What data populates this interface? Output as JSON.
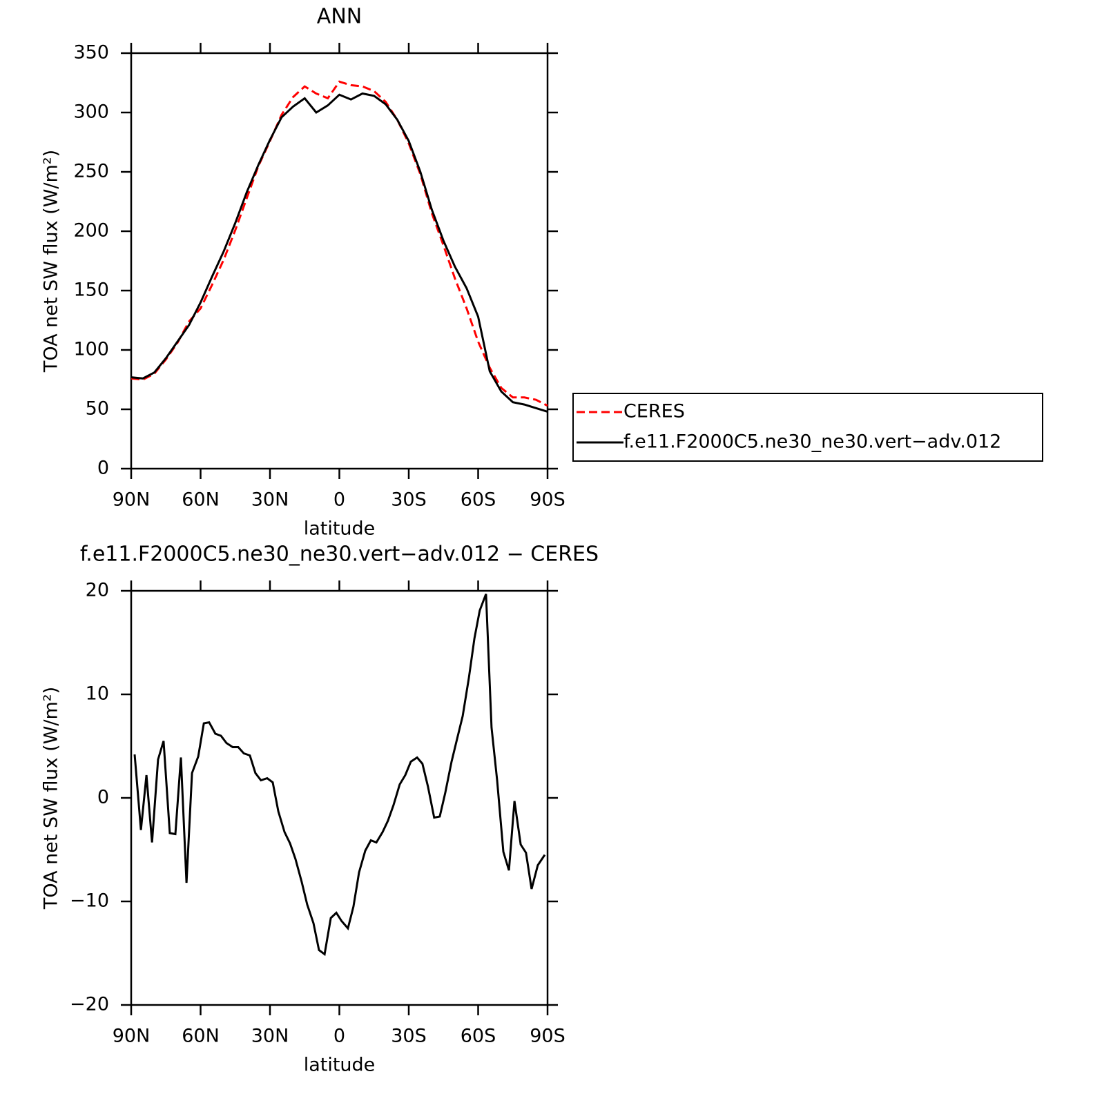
{
  "chart_data": [
    {
      "type": "line",
      "title": "ANN",
      "x_label": "latitude",
      "y_label": "TOA net SW flux (W/m²)",
      "x": [
        90,
        85,
        80,
        75,
        70,
        65,
        60,
        55,
        50,
        45,
        40,
        35,
        30,
        25,
        20,
        15,
        10,
        5,
        0,
        -5,
        -10,
        -15,
        -20,
        -25,
        -30,
        -35,
        -40,
        -45,
        -50,
        -55,
        -60,
        -65,
        -70,
        -75,
        -80,
        -85,
        -90
      ],
      "series": [
        {
          "name": "CERES",
          "color": "#ff0000",
          "dash": true,
          "values": [
            76,
            75,
            80,
            92,
            106,
            124,
            135,
            155,
            176,
            201,
            228,
            255,
            276,
            298,
            313,
            322,
            316,
            312,
            326,
            323,
            322,
            318,
            309,
            294,
            274,
            248,
            215,
            188,
            160,
            135,
            107,
            85,
            68,
            60,
            60,
            58,
            53
          ]
        },
        {
          "name": "f.e11.F2000C5.ne30_ne30.vert−adv.012",
          "color": "#000000",
          "dash": false,
          "values": [
            77,
            76,
            81,
            93,
            107,
            121,
            140,
            162,
            183,
            207,
            233,
            256,
            277,
            296,
            305,
            312,
            300,
            306,
            315,
            311,
            316,
            314,
            307,
            294,
            276,
            250,
            218,
            192,
            170,
            152,
            128,
            82,
            65,
            56,
            54,
            51,
            48
          ]
        }
      ],
      "xlim": [
        90,
        -90
      ],
      "xticks": [
        {
          "value": 90,
          "label": "90N"
        },
        {
          "value": 60,
          "label": "60N"
        },
        {
          "value": 30,
          "label": "30N"
        },
        0,
        {
          "value": -30,
          "label": "30S"
        },
        {
          "value": -60,
          "label": "60S"
        },
        {
          "value": -90,
          "label": "90S"
        }
      ],
      "ylim": [
        0,
        350
      ],
      "yticks": [
        0,
        50,
        100,
        150,
        200,
        250,
        300,
        350
      ],
      "legend": "right"
    },
    {
      "type": "line",
      "title": "f.e11.F2000C5.ne30_ne30.vert−adv.012 − CERES",
      "x_label": "latitude",
      "y_label": "TOA net SW flux (W/m²)",
      "x": [
        88.5,
        85.8,
        83.4,
        81.0,
        78.4,
        76.0,
        73.3,
        70.9,
        68.5,
        66.1,
        63.7,
        61.0,
        58.6,
        56.3,
        53.6,
        51.2,
        48.8,
        46.1,
        43.7,
        41.3,
        38.7,
        36.3,
        33.9,
        31.2,
        28.8,
        26.4,
        23.7,
        21.3,
        19.0,
        16.3,
        13.9,
        11.2,
        8.8,
        6.4,
        3.7,
        1.3,
        -1.0,
        -3.7,
        -6.1,
        -8.5,
        -11.2,
        -13.6,
        -16.0,
        -18.7,
        -21.0,
        -23.4,
        -26.1,
        -28.5,
        -30.9,
        -33.6,
        -35.9,
        -38.3,
        -41.0,
        -43.4,
        -45.8,
        -48.5,
        -50.9,
        -53.3,
        -56.0,
        -58.4,
        -60.7,
        -63.4,
        -65.8,
        -68.2,
        -70.9,
        -73.3,
        -75.7,
        -78.4,
        -80.7,
        -83.1,
        -85.8,
        -88.8
      ],
      "series": [
        {
          "name": "f.e11.F2000C5.ne30_ne30.vert−adv.012 − CERES",
          "color": "#000000",
          "dash": false,
          "values": [
            4.2,
            -3.1,
            2.2,
            -4.3,
            3.7,
            5.5,
            -3.4,
            -3.5,
            3.9,
            -8.2,
            2.4,
            4.0,
            7.2,
            7.3,
            6.2,
            6.0,
            5.3,
            4.9,
            4.9,
            4.3,
            4.1,
            2.4,
            1.7,
            1.9,
            1.5,
            -1.3,
            -3.3,
            -4.4,
            -5.9,
            -8.1,
            -10.3,
            -12.1,
            -14.7,
            -15.1,
            -11.6,
            -11.1,
            -11.9,
            -12.6,
            -10.5,
            -7.2,
            -5.1,
            -4.1,
            -4.3,
            -3.3,
            -2.2,
            -0.7,
            1.3,
            2.2,
            3.5,
            3.9,
            3.3,
            1.1,
            -1.9,
            -1.8,
            0.5,
            3.5,
            5.7,
            7.9,
            11.6,
            15.4,
            18.1,
            19.7,
            6.8,
            1.7,
            -5.2,
            -7.0,
            -0.3,
            -4.5,
            -5.3,
            -8.8,
            -6.5,
            -5.5
          ]
        }
      ],
      "xlim": [
        90,
        -90
      ],
      "xticks": [
        {
          "value": 90,
          "label": "90N"
        },
        {
          "value": 60,
          "label": "60N"
        },
        {
          "value": 30,
          "label": "30N"
        },
        0,
        {
          "value": -30,
          "label": "30S"
        },
        {
          "value": -60,
          "label": "60S"
        },
        {
          "value": -90,
          "label": "90S"
        }
      ],
      "ylim": [
        -20,
        20
      ],
      "yticks": [
        {
          "value": -20,
          "label": "−20"
        },
        {
          "value": -10,
          "label": "−10"
        },
        0,
        10,
        20
      ]
    }
  ]
}
